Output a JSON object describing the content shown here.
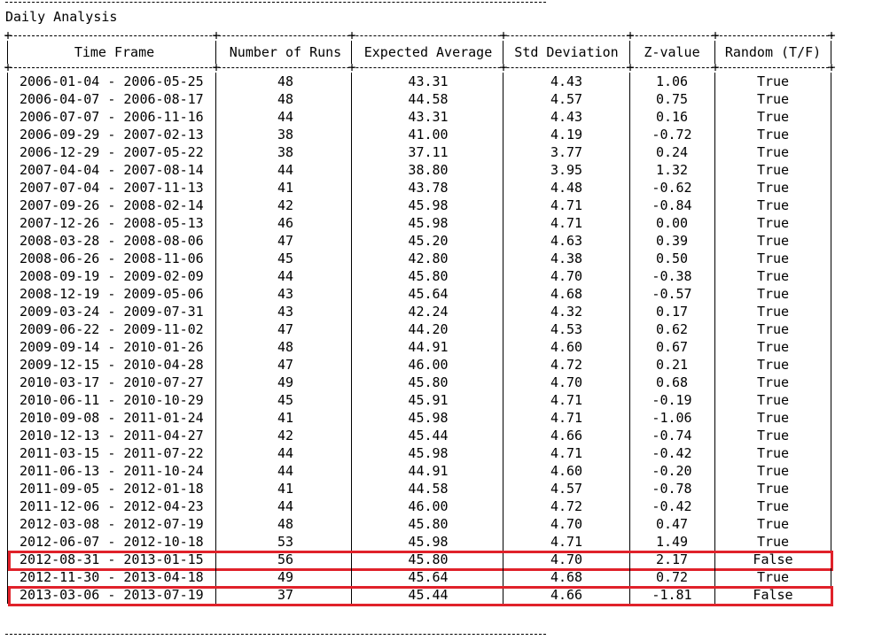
{
  "title": "Daily Analysis",
  "columns": [
    "Time Frame",
    "Number of Runs",
    "Expected Average",
    "Std Deviation",
    "Z-value",
    "Random (T/F)"
  ],
  "rows": [
    {
      "time_frame": "2006-01-04 - 2006-05-25",
      "runs": "48",
      "expected": "43.31",
      "std": "4.43",
      "z": "1.06",
      "random": "True",
      "highlight": false
    },
    {
      "time_frame": "2006-04-07 - 2006-08-17",
      "runs": "48",
      "expected": "44.58",
      "std": "4.57",
      "z": "0.75",
      "random": "True",
      "highlight": false
    },
    {
      "time_frame": "2006-07-07 - 2006-11-16",
      "runs": "44",
      "expected": "43.31",
      "std": "4.43",
      "z": "0.16",
      "random": "True",
      "highlight": false
    },
    {
      "time_frame": "2006-09-29 - 2007-02-13",
      "runs": "38",
      "expected": "41.00",
      "std": "4.19",
      "z": "-0.72",
      "random": "True",
      "highlight": false
    },
    {
      "time_frame": "2006-12-29 - 2007-05-22",
      "runs": "38",
      "expected": "37.11",
      "std": "3.77",
      "z": "0.24",
      "random": "True",
      "highlight": false
    },
    {
      "time_frame": "2007-04-04 - 2007-08-14",
      "runs": "44",
      "expected": "38.80",
      "std": "3.95",
      "z": "1.32",
      "random": "True",
      "highlight": false
    },
    {
      "time_frame": "2007-07-04 - 2007-11-13",
      "runs": "41",
      "expected": "43.78",
      "std": "4.48",
      "z": "-0.62",
      "random": "True",
      "highlight": false
    },
    {
      "time_frame": "2007-09-26 - 2008-02-14",
      "runs": "42",
      "expected": "45.98",
      "std": "4.71",
      "z": "-0.84",
      "random": "True",
      "highlight": false
    },
    {
      "time_frame": "2007-12-26 - 2008-05-13",
      "runs": "46",
      "expected": "45.98",
      "std": "4.71",
      "z": "0.00",
      "random": "True",
      "highlight": false
    },
    {
      "time_frame": "2008-03-28 - 2008-08-06",
      "runs": "47",
      "expected": "45.20",
      "std": "4.63",
      "z": "0.39",
      "random": "True",
      "highlight": false
    },
    {
      "time_frame": "2008-06-26 - 2008-11-06",
      "runs": "45",
      "expected": "42.80",
      "std": "4.38",
      "z": "0.50",
      "random": "True",
      "highlight": false
    },
    {
      "time_frame": "2008-09-19 - 2009-02-09",
      "runs": "44",
      "expected": "45.80",
      "std": "4.70",
      "z": "-0.38",
      "random": "True",
      "highlight": false
    },
    {
      "time_frame": "2008-12-19 - 2009-05-06",
      "runs": "43",
      "expected": "45.64",
      "std": "4.68",
      "z": "-0.57",
      "random": "True",
      "highlight": false
    },
    {
      "time_frame": "2009-03-24 - 2009-07-31",
      "runs": "43",
      "expected": "42.24",
      "std": "4.32",
      "z": "0.17",
      "random": "True",
      "highlight": false
    },
    {
      "time_frame": "2009-06-22 - 2009-11-02",
      "runs": "47",
      "expected": "44.20",
      "std": "4.53",
      "z": "0.62",
      "random": "True",
      "highlight": false
    },
    {
      "time_frame": "2009-09-14 - 2010-01-26",
      "runs": "48",
      "expected": "44.91",
      "std": "4.60",
      "z": "0.67",
      "random": "True",
      "highlight": false
    },
    {
      "time_frame": "2009-12-15 - 2010-04-28",
      "runs": "47",
      "expected": "46.00",
      "std": "4.72",
      "z": "0.21",
      "random": "True",
      "highlight": false
    },
    {
      "time_frame": "2010-03-17 - 2010-07-27",
      "runs": "49",
      "expected": "45.80",
      "std": "4.70",
      "z": "0.68",
      "random": "True",
      "highlight": false
    },
    {
      "time_frame": "2010-06-11 - 2010-10-29",
      "runs": "45",
      "expected": "45.91",
      "std": "4.71",
      "z": "-0.19",
      "random": "True",
      "highlight": false
    },
    {
      "time_frame": "2010-09-08 - 2011-01-24",
      "runs": "41",
      "expected": "45.98",
      "std": "4.71",
      "z": "-1.06",
      "random": "True",
      "highlight": false
    },
    {
      "time_frame": "2010-12-13 - 2011-04-27",
      "runs": "42",
      "expected": "45.44",
      "std": "4.66",
      "z": "-0.74",
      "random": "True",
      "highlight": false
    },
    {
      "time_frame": "2011-03-15 - 2011-07-22",
      "runs": "44",
      "expected": "45.98",
      "std": "4.71",
      "z": "-0.42",
      "random": "True",
      "highlight": false
    },
    {
      "time_frame": "2011-06-13 - 2011-10-24",
      "runs": "44",
      "expected": "44.91",
      "std": "4.60",
      "z": "-0.20",
      "random": "True",
      "highlight": false
    },
    {
      "time_frame": "2011-09-05 - 2012-01-18",
      "runs": "41",
      "expected": "44.58",
      "std": "4.57",
      "z": "-0.78",
      "random": "True",
      "highlight": false
    },
    {
      "time_frame": "2011-12-06 - 2012-04-23",
      "runs": "44",
      "expected": "46.00",
      "std": "4.72",
      "z": "-0.42",
      "random": "True",
      "highlight": false
    },
    {
      "time_frame": "2012-03-08 - 2012-07-19",
      "runs": "48",
      "expected": "45.80",
      "std": "4.70",
      "z": "0.47",
      "random": "True",
      "highlight": false
    },
    {
      "time_frame": "2012-06-07 - 2012-10-18",
      "runs": "53",
      "expected": "45.98",
      "std": "4.71",
      "z": "1.49",
      "random": "True",
      "highlight": false
    },
    {
      "time_frame": "2012-08-31 - 2013-01-15",
      "runs": "56",
      "expected": "45.80",
      "std": "4.70",
      "z": "2.17",
      "random": "False",
      "highlight": true
    },
    {
      "time_frame": "2012-11-30 - 2013-04-18",
      "runs": "49",
      "expected": "45.64",
      "std": "4.68",
      "z": "0.72",
      "random": "True",
      "highlight": false
    },
    {
      "time_frame": "2013-03-06 - 2013-07-19",
      "runs": "37",
      "expected": "45.44",
      "std": "4.66",
      "z": "-1.81",
      "random": "False",
      "highlight": true
    }
  ],
  "colors": {
    "highlight_border": "#e0212a",
    "text": "#000000",
    "background": "#ffffff"
  }
}
